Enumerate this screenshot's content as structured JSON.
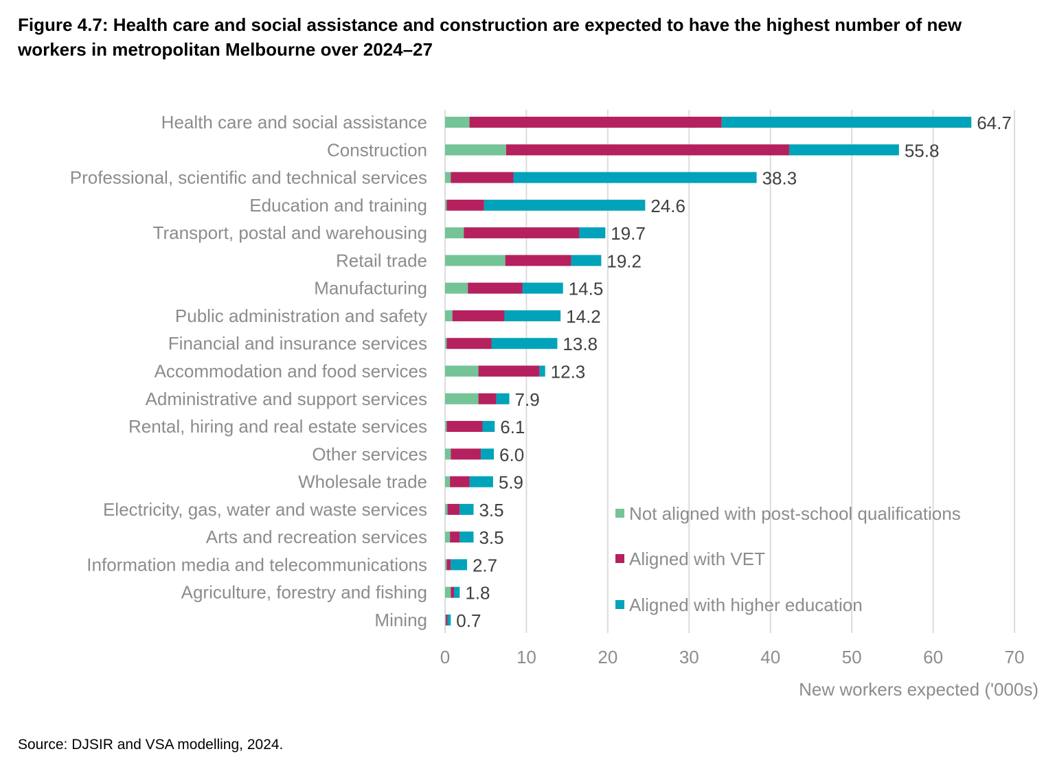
{
  "title": "Figure 4.7: Health care and social assistance and construction are expected to have the highest number of new workers in metropolitan Melbourne over 2024–27",
  "source": "Source:  DJSIR and VSA modelling, 2024.",
  "chart_data": {
    "type": "bar",
    "orientation": "horizontal",
    "stacked": true,
    "title": "Figure 4.7: Health care and social assistance and construction are expected to have the highest number of new workers in metropolitan Melbourne over 2024–27",
    "xlabel": "New workers expected ('000s)",
    "ylabel": "",
    "xlim": [
      0,
      70
    ],
    "xticks": [
      0,
      10,
      20,
      30,
      40,
      50,
      60,
      70
    ],
    "grid": true,
    "legend_position": "bottom-right",
    "categories": [
      "Health care and social assistance",
      "Construction",
      "Professional, scientific and technical services",
      "Education and training",
      "Transport, postal and warehousing",
      "Retail trade",
      "Manufacturing",
      "Public administration and safety",
      "Financial and insurance services",
      "Accommodation and food services",
      "Administrative and support services",
      "Rental, hiring and real estate services",
      "Other services",
      "Wholesale trade",
      "Electricity, gas, water and waste services",
      "Arts and recreation services",
      "Information media and telecommunications",
      "Agriculture, forestry and fishing",
      "Mining"
    ],
    "series": [
      {
        "name": "Not aligned with post-school qualifications",
        "color": "#74c497",
        "values": [
          3.0,
          7.5,
          0.7,
          0.2,
          2.3,
          7.4,
          2.8,
          0.9,
          0.2,
          4.1,
          4.1,
          0.2,
          0.7,
          0.6,
          0.3,
          0.6,
          0.2,
          0.7,
          0.1
        ]
      },
      {
        "name": "Aligned with VET",
        "color": "#b5215e",
        "values": [
          31.0,
          34.8,
          7.7,
          4.6,
          14.2,
          8.1,
          6.7,
          6.4,
          5.5,
          7.5,
          2.2,
          4.4,
          3.7,
          2.4,
          1.5,
          1.2,
          0.5,
          0.4,
          0.2
        ]
      },
      {
        "name": "Aligned with higher education",
        "color": "#00a3b9",
        "values": [
          30.7,
          13.5,
          29.9,
          19.8,
          3.2,
          3.7,
          5.0,
          6.9,
          8.1,
          0.7,
          1.6,
          1.5,
          1.6,
          2.9,
          1.7,
          1.7,
          2.0,
          0.7,
          0.4
        ]
      }
    ],
    "totals": [
      "64.7",
      "55.8",
      "38.3",
      "24.6",
      "19.7",
      "19.2",
      "14.5",
      "14.2",
      "13.8",
      "12.3",
      "7.9",
      "6.1",
      "6.0",
      "5.9",
      "3.5",
      "3.5",
      "2.7",
      "1.8",
      "0.7"
    ]
  }
}
